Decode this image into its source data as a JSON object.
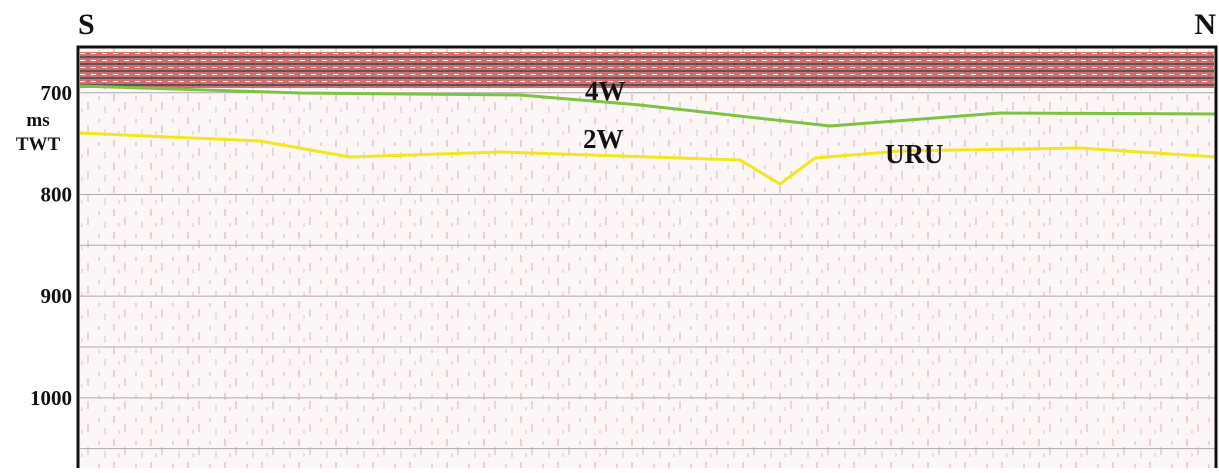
{
  "profile": {
    "ends": {
      "left": "S",
      "right": "N"
    },
    "axis": {
      "unit_label": [
        "ms",
        "TWT"
      ],
      "ylim": [
        655,
        1069
      ],
      "ticks": [
        700,
        800,
        900,
        1000
      ],
      "gridlines": [
        700,
        800,
        850,
        900,
        950,
        1000,
        1050
      ]
    },
    "horizons": [
      {
        "name": "4W",
        "color": "#7dc242"
      },
      {
        "name": "2W",
        "color": "#f5e51c"
      }
    ],
    "annotation": "URU"
  }
}
